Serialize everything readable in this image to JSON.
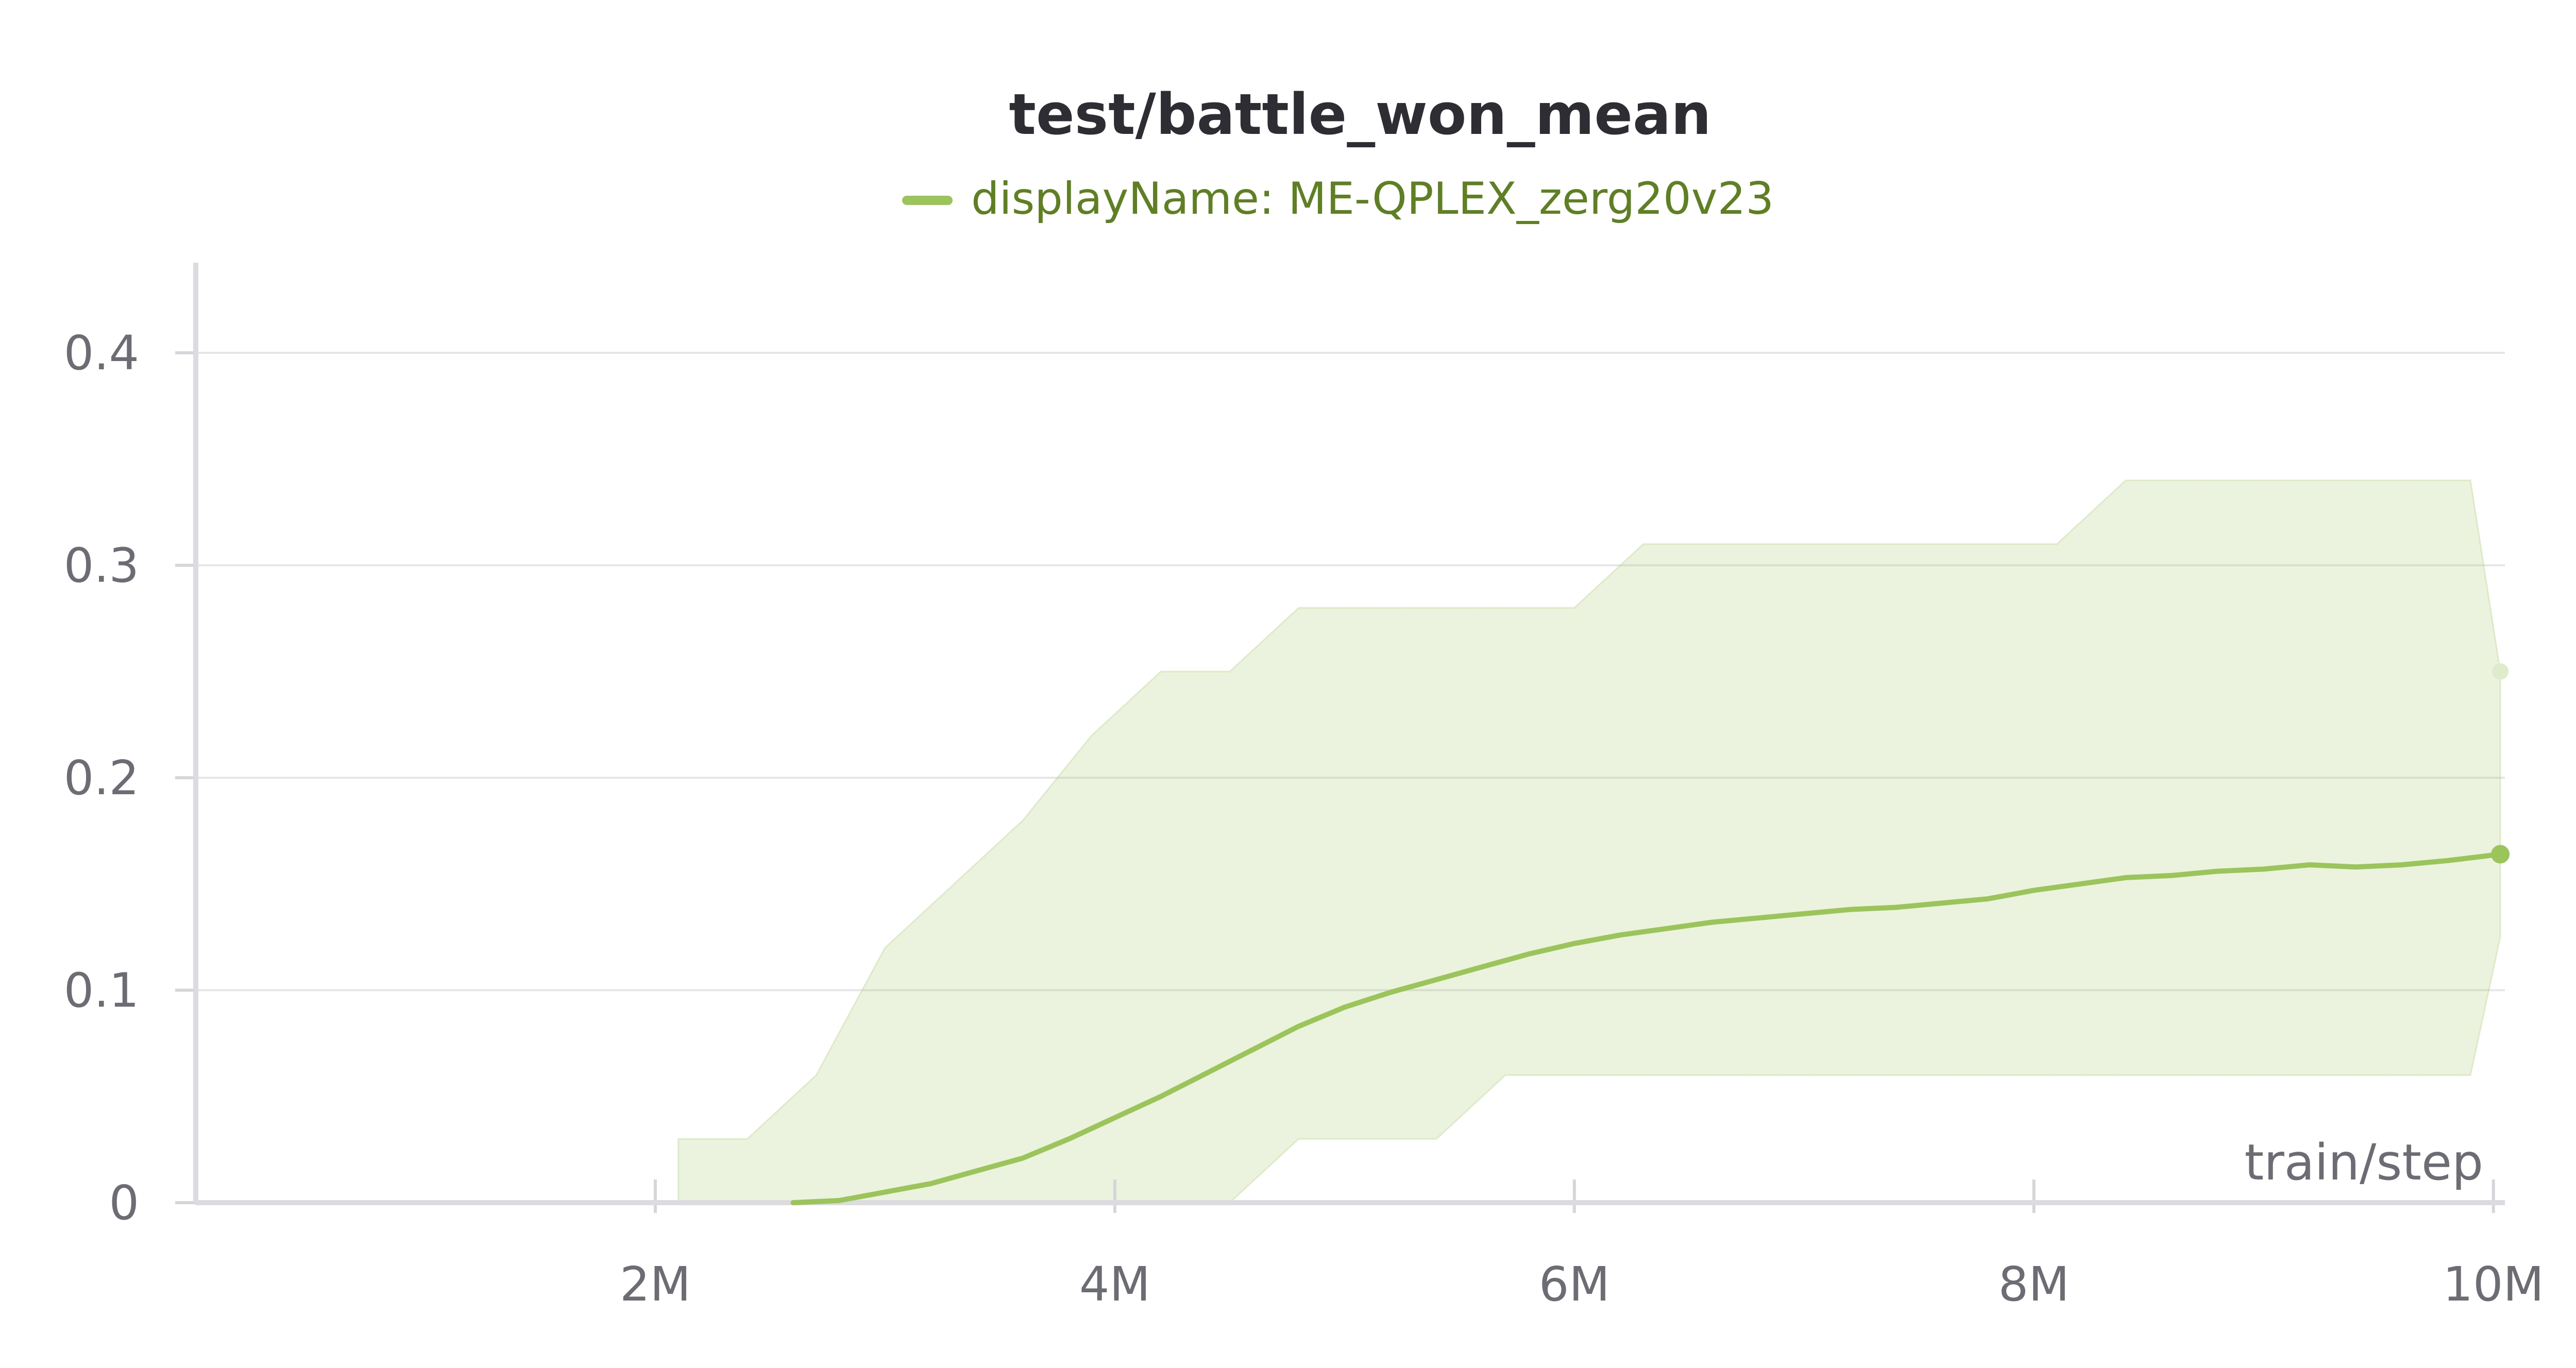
{
  "chart_data": {
    "type": "line",
    "title": "test/battle_won_mean",
    "xlabel": "train/step",
    "ylabel": "",
    "xlim": [
      0,
      10050000
    ],
    "ylim": [
      0,
      0.44
    ],
    "x_ticks": [
      {
        "value": 2000000,
        "label": "2M"
      },
      {
        "value": 4000000,
        "label": "4M"
      },
      {
        "value": 6000000,
        "label": "6M"
      },
      {
        "value": 8000000,
        "label": "8M"
      },
      {
        "value": 10000000,
        "label": "10M"
      }
    ],
    "y_ticks": [
      {
        "value": 0,
        "label": "0"
      },
      {
        "value": 0.1,
        "label": "0.1"
      },
      {
        "value": 0.2,
        "label": "0.2"
      },
      {
        "value": 0.3,
        "label": "0.3"
      },
      {
        "value": 0.4,
        "label": "0.4"
      }
    ],
    "grid": true,
    "legend_position": "top-center",
    "series": [
      {
        "name": "displayName: ME-QPLEX_zerg20v23",
        "color": "#9bc55a",
        "smoothed": {
          "x": [
            2600000,
            2800000,
            3000000,
            3200000,
            3400000,
            3600000,
            3800000,
            4000000,
            4200000,
            4400000,
            4600000,
            4800000,
            5000000,
            5200000,
            5400000,
            5600000,
            5800000,
            6000000,
            6200000,
            6400000,
            6600000,
            6800000,
            7000000,
            7200000,
            7400000,
            7600000,
            7800000,
            8000000,
            8200000,
            8400000,
            8600000,
            8800000,
            9000000,
            9200000,
            9400000,
            9600000,
            9800000,
            10030000
          ],
          "y": [
            0,
            0.001,
            0.005,
            0.009,
            0.015,
            0.021,
            0.03,
            0.04,
            0.05,
            0.061,
            0.072,
            0.083,
            0.092,
            0.099,
            0.105,
            0.111,
            0.117,
            0.122,
            0.126,
            0.129,
            0.132,
            0.134,
            0.136,
            0.138,
            0.139,
            0.141,
            0.143,
            0.147,
            0.15,
            0.153,
            0.154,
            0.156,
            0.157,
            0.159,
            0.158,
            0.159,
            0.161,
            0.164
          ]
        },
        "raw_band": {
          "x": [
            2100000,
            2400000,
            2700000,
            3000000,
            3300000,
            3600000,
            3900000,
            4200000,
            4500000,
            4800000,
            5100000,
            5400000,
            5700000,
            6000000,
            6300000,
            6600000,
            6900000,
            7200000,
            7500000,
            7800000,
            8100000,
            8400000,
            8700000,
            9000000,
            9300000,
            9600000,
            9900000,
            10030000
          ],
          "low": [
            0,
            0,
            0,
            0,
            0,
            0,
            0,
            0,
            0,
            0.03,
            0.03,
            0.03,
            0.06,
            0.06,
            0.06,
            0.06,
            0.06,
            0.06,
            0.06,
            0.06,
            0.06,
            0.06,
            0.06,
            0.06,
            0.06,
            0.06,
            0.06,
            0.125
          ],
          "high": [
            0.03,
            0.03,
            0.06,
            0.12,
            0.15,
            0.18,
            0.22,
            0.25,
            0.25,
            0.28,
            0.28,
            0.28,
            0.28,
            0.28,
            0.31,
            0.31,
            0.31,
            0.31,
            0.31,
            0.31,
            0.31,
            0.34,
            0.34,
            0.34,
            0.34,
            0.34,
            0.34,
            0.25
          ]
        },
        "last_raw": 0.25,
        "last_smoothed": 0.164
      }
    ]
  }
}
